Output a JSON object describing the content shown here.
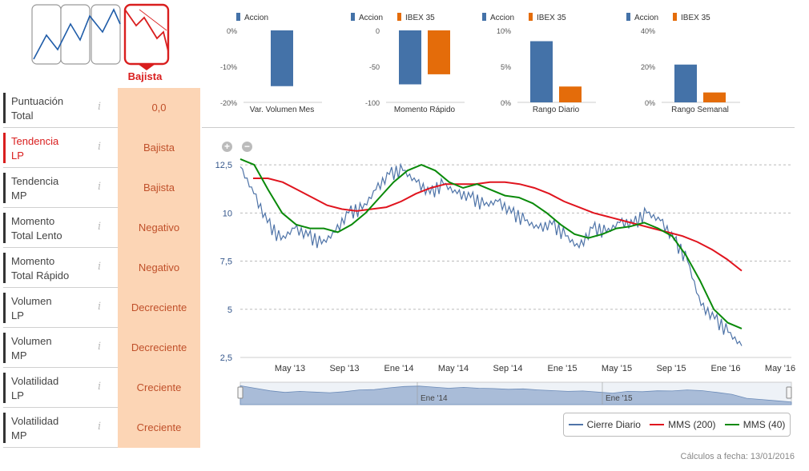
{
  "trend": {
    "label": "Bajista"
  },
  "score_table": [
    {
      "label_line1": "Puntuación",
      "label_line2": "Total",
      "value": "0,0",
      "active": false
    },
    {
      "label_line1": "Tendencia",
      "label_line2": "LP",
      "value": "Bajista",
      "active": true
    },
    {
      "label_line1": "Tendencia",
      "label_line2": "MP",
      "value": "Bajista",
      "active": false
    },
    {
      "label_line1": "Momento",
      "label_line2": "Total Lento",
      "value": "Negativo",
      "active": false
    },
    {
      "label_line1": "Momento",
      "label_line2": "Total Rápido",
      "value": "Negativo",
      "active": false
    },
    {
      "label_line1": "Volumen",
      "label_line2": "LP",
      "value": "Decreciente",
      "active": false
    },
    {
      "label_line1": "Volumen",
      "label_line2": "MP",
      "value": "Decreciente",
      "active": false
    },
    {
      "label_line1": "Volatilidad",
      "label_line2": "LP",
      "value": "Creciente",
      "active": false
    },
    {
      "label_line1": "Volatilidad",
      "label_line2": "MP",
      "value": "Creciente",
      "active": false
    }
  ],
  "info_glyph": "i",
  "colors": {
    "accion": "#4472a8",
    "ibex": "#e46c0a",
    "mms200": "#e0141e",
    "mms40": "#0a8a0a",
    "cierre": "#4f74a8",
    "bearish": "#d91e1e"
  },
  "chart_data": [
    {
      "type": "bar",
      "xlabel": "Var. Volumen Mes",
      "series": [
        {
          "name": "Accion",
          "values": [
            -15.5
          ]
        }
      ],
      "ylim": [
        -20,
        0
      ],
      "yticks": [
        "0%",
        "-10%",
        "-20%"
      ]
    },
    {
      "type": "bar",
      "xlabel": "Momento Rápido",
      "series": [
        {
          "name": "Accion",
          "values": [
            -75
          ]
        },
        {
          "name": "IBEX 35",
          "values": [
            -61
          ]
        }
      ],
      "ylim": [
        -100,
        0
      ],
      "yticks": [
        "0",
        "-50",
        "-100"
      ]
    },
    {
      "type": "bar",
      "xlabel": "Rango Diario",
      "series": [
        {
          "name": "Accion",
          "values": [
            8.5
          ]
        },
        {
          "name": "IBEX 35",
          "values": [
            2.2
          ]
        }
      ],
      "ylim": [
        0,
        10
      ],
      "yticks": [
        "10%",
        "5%",
        "0%"
      ]
    },
    {
      "type": "bar",
      "xlabel": "Rango Semanal",
      "series": [
        {
          "name": "Accion",
          "values": [
            21
          ]
        },
        {
          "name": "IBEX 35",
          "values": [
            5.5
          ]
        }
      ],
      "ylim": [
        0,
        40
      ],
      "yticks": [
        "40%",
        "20%",
        "0%"
      ]
    },
    {
      "type": "line",
      "ylim": [
        2.5,
        13.5
      ],
      "yticks": [
        "12,5",
        "10",
        "7,5",
        "5",
        "2,5"
      ],
      "xticks": [
        "May '13",
        "Sep '13",
        "Ene '14",
        "May '14",
        "Sep '14",
        "Ene '15",
        "May '15",
        "Sep '15",
        "Ene '16",
        "May '16"
      ],
      "navigator_labels": [
        "Ene '14",
        "Ene '15"
      ],
      "series": [
        {
          "name": "Cierre Diario",
          "values": [
            12.4,
            11.0,
            9.5,
            8.6,
            9.2,
            8.8,
            8.4,
            9.0,
            10.0,
            10.2,
            11.2,
            12.0,
            12.2,
            11.6,
            11.0,
            11.5,
            11.0,
            10.8,
            10.4,
            10.6,
            10.0,
            9.6,
            9.2,
            9.4,
            8.8,
            8.2,
            9.2,
            9.0,
            9.5,
            9.4,
            10.0,
            9.6,
            8.6,
            7.5,
            5.2,
            4.5,
            3.8,
            3.1
          ]
        },
        {
          "name": "MMS (200)",
          "values": [
            11.8,
            11.8,
            11.6,
            11.2,
            10.8,
            10.4,
            10.2,
            10.1,
            10.2,
            10.3,
            10.6,
            11.0,
            11.3,
            11.5,
            11.5,
            11.5,
            11.6,
            11.6,
            11.5,
            11.3,
            11.0,
            10.6,
            10.3,
            10.0,
            9.8,
            9.6,
            9.4,
            9.2,
            9.0,
            8.8,
            8.5,
            8.1,
            7.6,
            7.0
          ]
        },
        {
          "name": "MMS (40)",
          "values": [
            12.8,
            12.5,
            11.2,
            10.0,
            9.4,
            9.2,
            9.2,
            9.0,
            9.4,
            10.0,
            10.8,
            11.6,
            12.2,
            12.5,
            12.2,
            11.6,
            11.3,
            11.5,
            11.2,
            10.9,
            10.8,
            10.5,
            10.0,
            9.4,
            8.9,
            8.7,
            8.9,
            9.2,
            9.3,
            9.5,
            9.2,
            8.8,
            7.8,
            6.5,
            5.0,
            4.3,
            4.0
          ]
        }
      ]
    }
  ],
  "legend": {
    "cierre": "Cierre Diario",
    "mms200": "MMS (200)",
    "mms40": "MMS (40)"
  },
  "zoom": {
    "in": "+",
    "out": "−"
  },
  "footer": {
    "calc_date": "Cálculos a fecha: 13/01/2016"
  }
}
